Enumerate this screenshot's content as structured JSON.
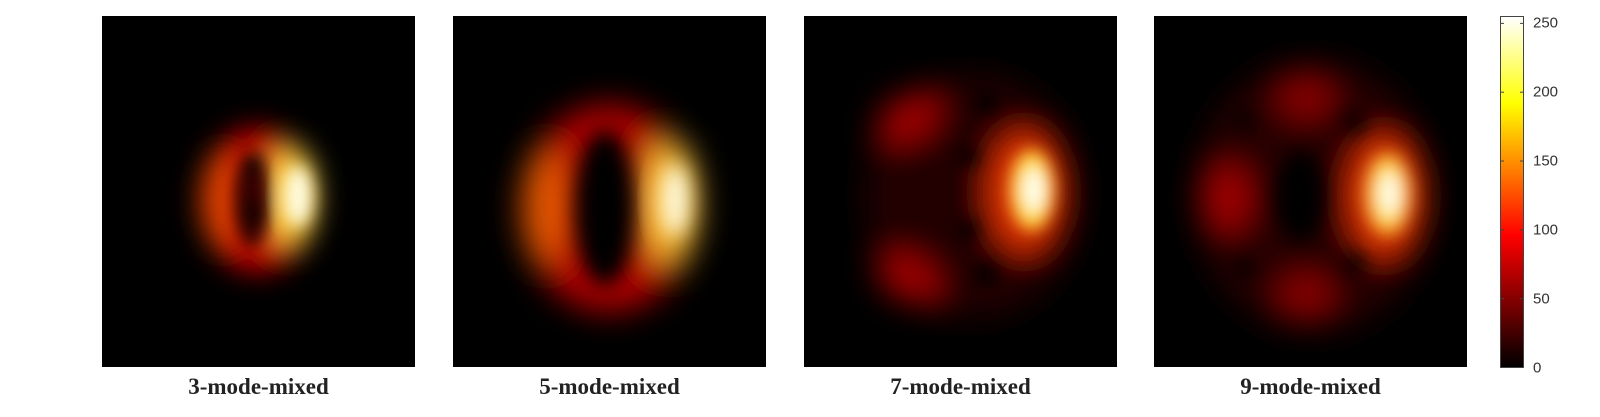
{
  "chart_data": {
    "type": "heatmap",
    "panels": [
      {
        "title": "3-mode-mixed"
      },
      {
        "title": "5-mode-mixed"
      },
      {
        "title": "7-mode-mixed"
      },
      {
        "title": "9-mode-mixed"
      }
    ],
    "colormap": "hot",
    "colorbar": {
      "range": [
        0,
        255
      ],
      "ticks": [
        0,
        50,
        100,
        150,
        200,
        250
      ],
      "tick_labels": [
        "0",
        "50",
        "100",
        "150",
        "200",
        "250"
      ]
    },
    "grid": false,
    "legend": "none"
  }
}
